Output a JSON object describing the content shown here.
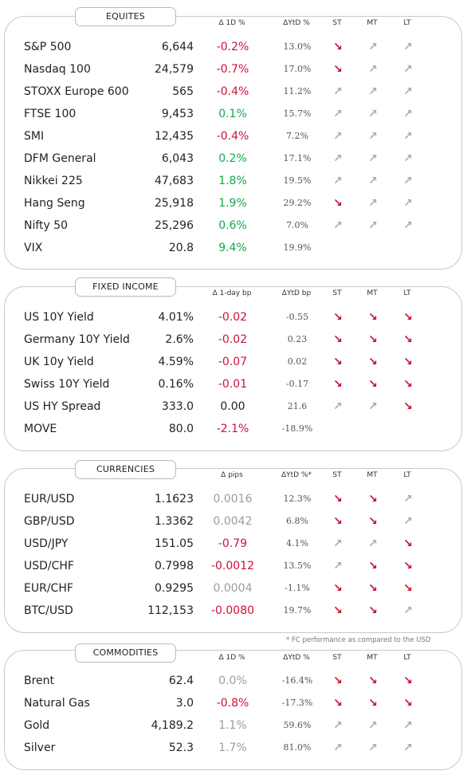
{
  "colors": {
    "negative": "#d0103a",
    "positive": "#14a84a",
    "neutral": "#9c9c9c",
    "arrow_down": "#c4112d",
    "arrow_up": "#b8a89e"
  },
  "arrows": {
    "up": "↗",
    "down": "↘"
  },
  "footnote": "* FC performance as compared to the USD",
  "sections": [
    {
      "title": "EQUITES",
      "headers": {
        "change": "Δ 1D %",
        "ytd": "ΔYtD %",
        "st": "ST",
        "mt": "MT",
        "lt": "LT"
      },
      "rows": [
        {
          "name": "S&P 500",
          "value": "6,644",
          "change": "-0.2%",
          "change_tone": "negative",
          "ytd": "13.0%",
          "st": "down",
          "mt": "up",
          "lt": "up"
        },
        {
          "name": "Nasdaq 100",
          "value": "24,579",
          "change": "-0.7%",
          "change_tone": "negative",
          "ytd": "17.0%",
          "st": "down",
          "mt": "up",
          "lt": "up"
        },
        {
          "name": "STOXX Europe 600",
          "value": "565",
          "change": "-0.4%",
          "change_tone": "negative",
          "ytd": "11.2%",
          "st": "up",
          "mt": "up",
          "lt": "up"
        },
        {
          "name": "FTSE 100",
          "value": "9,453",
          "change": "0.1%",
          "change_tone": "positive",
          "ytd": "15.7%",
          "st": "up",
          "mt": "up",
          "lt": "up"
        },
        {
          "name": "SMI",
          "value": "12,435",
          "change": "-0.4%",
          "change_tone": "negative",
          "ytd": "7.2%",
          "st": "up",
          "mt": "up",
          "lt": "up"
        },
        {
          "name": "DFM General",
          "value": "6,043",
          "change": "0.2%",
          "change_tone": "positive",
          "ytd": "17.1%",
          "st": "up",
          "mt": "up",
          "lt": "up"
        },
        {
          "name": "Nikkei 225",
          "value": "47,683",
          "change": "1.8%",
          "change_tone": "positive",
          "ytd": "19.5%",
          "st": "up",
          "mt": "up",
          "lt": "up"
        },
        {
          "name": "Hang Seng",
          "value": "25,918",
          "change": "1.9%",
          "change_tone": "positive",
          "ytd": "29.2%",
          "st": "down",
          "mt": "up",
          "lt": "up"
        },
        {
          "name": "Nifty  50",
          "value": "25,296",
          "change": "0.6%",
          "change_tone": "positive",
          "ytd": "7.0%",
          "st": "up",
          "mt": "up",
          "lt": "up"
        },
        {
          "name": "VIX",
          "value": "20.8",
          "change": "9.4%",
          "change_tone": "positive",
          "ytd": "19.9%",
          "st": "",
          "mt": "",
          "lt": ""
        }
      ]
    },
    {
      "title": "FIXED INCOME",
      "headers": {
        "change": "Δ 1-day bp",
        "ytd": "ΔYtD bp",
        "st": "ST",
        "mt": "MT",
        "lt": "LT"
      },
      "rows": [
        {
          "name": "US 10Y Yield",
          "value": "4.01%",
          "change": "-0.02",
          "change_tone": "negative",
          "ytd": "-0.55",
          "st": "down",
          "mt": "down",
          "lt": "down"
        },
        {
          "name": "Germany 10Y Yield",
          "value": "2.6%",
          "change": "-0.02",
          "change_tone": "negative",
          "ytd": "0.23",
          "st": "down",
          "mt": "down",
          "lt": "down"
        },
        {
          "name": "UK 10y Yield",
          "value": "4.59%",
          "change": "-0.07",
          "change_tone": "negative",
          "ytd": "0.02",
          "st": "down",
          "mt": "down",
          "lt": "down"
        },
        {
          "name": "Swiss 10Y Yield",
          "value": "0.16%",
          "change": "-0.01",
          "change_tone": "negative",
          "ytd": "-0.17",
          "st": "down",
          "mt": "down",
          "lt": "down"
        },
        {
          "name": "US HY Spread",
          "value": "333.0",
          "change": "0.00",
          "change_tone": "plain",
          "ytd": "21.6",
          "st": "up",
          "mt": "up",
          "lt": "down"
        },
        {
          "name": "MOVE",
          "value": "80.0",
          "change": "-2.1%",
          "change_tone": "negative",
          "ytd": "-18.9%",
          "st": "",
          "mt": "",
          "lt": ""
        }
      ]
    },
    {
      "title": "CURRENCIES",
      "headers": {
        "change": "Δ pips",
        "ytd": "ΔYtD %*",
        "st": "ST",
        "mt": "MT",
        "lt": "LT"
      },
      "rows": [
        {
          "name": "EUR/USD",
          "value": "1.1623",
          "change": "0.0016",
          "change_tone": "neutral",
          "ytd": "12.3%",
          "st": "down",
          "mt": "down",
          "lt": "up"
        },
        {
          "name": "GBP/USD",
          "value": "1.3362",
          "change": "0.0042",
          "change_tone": "neutral",
          "ytd": "6.8%",
          "st": "down",
          "mt": "down",
          "lt": "up"
        },
        {
          "name": "USD/JPY",
          "value": "151.05",
          "change": "-0.79",
          "change_tone": "negative",
          "ytd": "4.1%",
          "st": "up",
          "mt": "up",
          "lt": "down"
        },
        {
          "name": "USD/CHF",
          "value": "0.7998",
          "change": "-0.0012",
          "change_tone": "negative",
          "ytd": "13.5%",
          "st": "up",
          "mt": "down",
          "lt": "down"
        },
        {
          "name": "EUR/CHF",
          "value": "0.9295",
          "change": "0.0004",
          "change_tone": "neutral",
          "ytd": "-1.1%",
          "st": "down",
          "mt": "down",
          "lt": "down"
        },
        {
          "name": "BTC/USD",
          "value": "112,153",
          "change": "-0.0080",
          "change_tone": "negative",
          "ytd": "19.7%",
          "st": "down",
          "mt": "down",
          "lt": "up"
        }
      ]
    },
    {
      "title": "COMMODITIES",
      "headers": {
        "change": "Δ 1D %",
        "ytd": "ΔYtD %",
        "st": "ST",
        "mt": "MT",
        "lt": "LT"
      },
      "rows": [
        {
          "name": "Brent",
          "value": "62.4",
          "change": "0.0%",
          "change_tone": "neutral",
          "ytd": "-16.4%",
          "st": "down",
          "mt": "down",
          "lt": "down"
        },
        {
          "name": "Natural Gas",
          "value": "3.0",
          "change": "-0.8%",
          "change_tone": "negative",
          "ytd": "-17.3%",
          "st": "down",
          "mt": "down",
          "lt": "down"
        },
        {
          "name": "Gold",
          "value": "4,189.2",
          "change": "1.1%",
          "change_tone": "neutral",
          "ytd": "59.6%",
          "st": "up",
          "mt": "up",
          "lt": "up"
        },
        {
          "name": "Silver",
          "value": "52.3",
          "change": "1.7%",
          "change_tone": "neutral",
          "ytd": "81.0%",
          "st": "up",
          "mt": "up",
          "lt": "up"
        }
      ]
    }
  ]
}
